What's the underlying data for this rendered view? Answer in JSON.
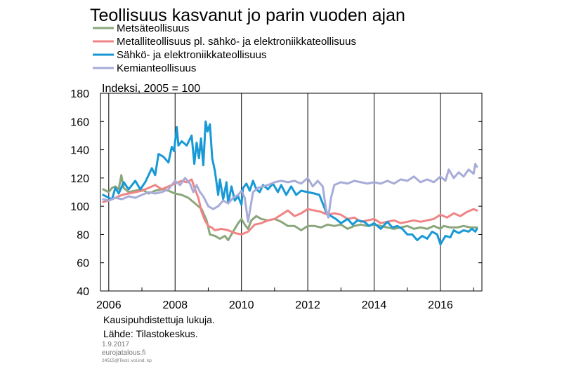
{
  "chart_data": {
    "type": "line",
    "title": "Teollisuus kasvanut jo parin vuoden ajan",
    "unit_label": "Indeksi, 2005 = 100",
    "ylim": [
      40,
      180
    ],
    "yticks": [
      "40",
      "60",
      "80",
      "100",
      "120",
      "140",
      "160",
      "180"
    ],
    "xlim": [
      2005.75,
      2017.25
    ],
    "xticks": [
      "2006",
      "2008",
      "2010",
      "2012",
      "2014",
      "2016"
    ],
    "grid": "vertical at even years",
    "legend_position": "top-left",
    "notes": [
      "Kausipuhdistettuja  lukuja.",
      "Lähde:  Tilastokeskus."
    ],
    "footer": {
      "date": "1.9.2017",
      "site": "eurojatalous.fi",
      "code": "24515@Teoll. vol.ind. kp"
    },
    "series": [
      {
        "name": "Metsäteollisuus",
        "color": "#8aa77c",
        "points": [
          [
            2005.83,
            112
          ],
          [
            2006.0,
            110
          ],
          [
            2006.1,
            113
          ],
          [
            2006.2,
            114
          ],
          [
            2006.3,
            112
          ],
          [
            2006.38,
            122
          ],
          [
            2006.45,
            113
          ],
          [
            2006.6,
            110
          ],
          [
            2006.8,
            111
          ],
          [
            2007.0,
            112
          ],
          [
            2007.2,
            109
          ],
          [
            2007.4,
            111
          ],
          [
            2007.6,
            112
          ],
          [
            2007.8,
            111
          ],
          [
            2008.0,
            109
          ],
          [
            2008.2,
            108
          ],
          [
            2008.4,
            106
          ],
          [
            2008.6,
            102
          ],
          [
            2008.8,
            98
          ],
          [
            2008.95,
            90
          ],
          [
            2009.05,
            80
          ],
          [
            2009.2,
            79
          ],
          [
            2009.35,
            77
          ],
          [
            2009.5,
            79
          ],
          [
            2009.6,
            76
          ],
          [
            2009.7,
            80
          ],
          [
            2009.8,
            84
          ],
          [
            2009.9,
            88
          ],
          [
            2010.0,
            91
          ],
          [
            2010.1,
            87
          ],
          [
            2010.2,
            84
          ],
          [
            2010.3,
            90
          ],
          [
            2010.45,
            93
          ],
          [
            2010.6,
            91
          ],
          [
            2010.8,
            90
          ],
          [
            2011.0,
            91
          ],
          [
            2011.2,
            89
          ],
          [
            2011.4,
            86
          ],
          [
            2011.6,
            86
          ],
          [
            2011.8,
            83
          ],
          [
            2012.0,
            86
          ],
          [
            2012.2,
            86
          ],
          [
            2012.4,
            85
          ],
          [
            2012.6,
            87
          ],
          [
            2012.8,
            86
          ],
          [
            2013.0,
            87
          ],
          [
            2013.2,
            84
          ],
          [
            2013.4,
            86
          ],
          [
            2013.6,
            87
          ],
          [
            2013.8,
            86
          ],
          [
            2014.0,
            87
          ],
          [
            2014.2,
            86
          ],
          [
            2014.4,
            85
          ],
          [
            2014.6,
            84
          ],
          [
            2014.8,
            85
          ],
          [
            2015.0,
            86
          ],
          [
            2015.2,
            84
          ],
          [
            2015.4,
            85
          ],
          [
            2015.6,
            84
          ],
          [
            2015.8,
            86
          ],
          [
            2016.0,
            84
          ],
          [
            2016.1,
            86
          ],
          [
            2016.3,
            85
          ],
          [
            2016.5,
            85
          ],
          [
            2016.7,
            86
          ],
          [
            2016.9,
            85
          ],
          [
            2017.1,
            85
          ]
        ]
      },
      {
        "name": "Metalliteollisuus pl. sähkö- ja elektroniikkateollisuus",
        "color": "#f08484",
        "points": [
          [
            2005.83,
            103
          ],
          [
            2006.0,
            104
          ],
          [
            2006.2,
            106
          ],
          [
            2006.4,
            108
          ],
          [
            2006.6,
            109
          ],
          [
            2006.8,
            110
          ],
          [
            2007.0,
            111
          ],
          [
            2007.2,
            113
          ],
          [
            2007.4,
            115
          ],
          [
            2007.6,
            112
          ],
          [
            2007.8,
            114
          ],
          [
            2008.0,
            116
          ],
          [
            2008.2,
            118
          ],
          [
            2008.35,
            117
          ],
          [
            2008.5,
            119
          ],
          [
            2008.6,
            112
          ],
          [
            2008.7,
            106
          ],
          [
            2008.8,
            96
          ],
          [
            2008.9,
            90
          ],
          [
            2009.0,
            86
          ],
          [
            2009.1,
            85
          ],
          [
            2009.2,
            83
          ],
          [
            2009.4,
            84
          ],
          [
            2009.6,
            83
          ],
          [
            2009.8,
            81
          ],
          [
            2010.0,
            80
          ],
          [
            2010.2,
            82
          ],
          [
            2010.4,
            87
          ],
          [
            2010.6,
            88
          ],
          [
            2010.8,
            90
          ],
          [
            2011.0,
            91
          ],
          [
            2011.2,
            94
          ],
          [
            2011.4,
            97
          ],
          [
            2011.6,
            93
          ],
          [
            2011.8,
            95
          ],
          [
            2012.0,
            98
          ],
          [
            2012.2,
            97
          ],
          [
            2012.4,
            96
          ],
          [
            2012.6,
            94
          ],
          [
            2012.8,
            95
          ],
          [
            2013.0,
            94
          ],
          [
            2013.2,
            91
          ],
          [
            2013.4,
            92
          ],
          [
            2013.6,
            89
          ],
          [
            2013.8,
            90
          ],
          [
            2014.0,
            91
          ],
          [
            2014.2,
            88
          ],
          [
            2014.4,
            89
          ],
          [
            2014.6,
            90
          ],
          [
            2014.8,
            88
          ],
          [
            2015.0,
            89
          ],
          [
            2015.2,
            90
          ],
          [
            2015.4,
            89
          ],
          [
            2015.6,
            90
          ],
          [
            2015.8,
            91
          ],
          [
            2016.0,
            94
          ],
          [
            2016.2,
            92
          ],
          [
            2016.4,
            95
          ],
          [
            2016.6,
            93
          ],
          [
            2016.8,
            96
          ],
          [
            2017.0,
            98
          ],
          [
            2017.1,
            97
          ]
        ]
      },
      {
        "name": "Sähkö- ja elektroniikkateollisuus",
        "color": "#1899d6",
        "points": [
          [
            2005.83,
            108
          ],
          [
            2006.0,
            106
          ],
          [
            2006.1,
            105
          ],
          [
            2006.2,
            113
          ],
          [
            2006.3,
            109
          ],
          [
            2006.45,
            117
          ],
          [
            2006.6,
            112
          ],
          [
            2006.8,
            118
          ],
          [
            2006.95,
            112
          ],
          [
            2007.1,
            117
          ],
          [
            2007.3,
            127
          ],
          [
            2007.4,
            122
          ],
          [
            2007.5,
            137
          ],
          [
            2007.65,
            135
          ],
          [
            2007.8,
            131
          ],
          [
            2007.9,
            142
          ],
          [
            2007.97,
            139
          ],
          [
            2008.05,
            156
          ],
          [
            2008.1,
            143
          ],
          [
            2008.2,
            146
          ],
          [
            2008.35,
            143
          ],
          [
            2008.5,
            150
          ],
          [
            2008.58,
            130
          ],
          [
            2008.65,
            145
          ],
          [
            2008.72,
            134
          ],
          [
            2008.78,
            148
          ],
          [
            2008.85,
            129
          ],
          [
            2008.92,
            160
          ],
          [
            2008.98,
            153
          ],
          [
            2009.05,
            158
          ],
          [
            2009.12,
            134
          ],
          [
            2009.2,
            125
          ],
          [
            2009.3,
            108
          ],
          [
            2009.35,
            119
          ],
          [
            2009.45,
            105
          ],
          [
            2009.55,
            117
          ],
          [
            2009.6,
            102
          ],
          [
            2009.7,
            114
          ],
          [
            2009.8,
            104
          ],
          [
            2009.9,
            107
          ],
          [
            2010.0,
            101
          ],
          [
            2010.05,
            113
          ],
          [
            2010.15,
            116
          ],
          [
            2010.25,
            111
          ],
          [
            2010.35,
            118
          ],
          [
            2010.45,
            112
          ],
          [
            2010.55,
            110
          ],
          [
            2010.65,
            115
          ],
          [
            2010.8,
            112
          ],
          [
            2010.95,
            116
          ],
          [
            2011.1,
            110
          ],
          [
            2011.2,
            115
          ],
          [
            2011.35,
            108
          ],
          [
            2011.5,
            114
          ],
          [
            2011.65,
            108
          ],
          [
            2011.8,
            111
          ],
          [
            2012.0,
            110
          ],
          [
            2012.2,
            109
          ],
          [
            2012.35,
            108
          ],
          [
            2012.45,
            102
          ],
          [
            2012.55,
            96
          ],
          [
            2012.7,
            93
          ],
          [
            2012.85,
            91
          ],
          [
            2013.0,
            88
          ],
          [
            2013.2,
            91
          ],
          [
            2013.35,
            87
          ],
          [
            2013.5,
            90
          ],
          [
            2013.7,
            89
          ],
          [
            2013.85,
            86
          ],
          [
            2014.0,
            88
          ],
          [
            2014.2,
            84
          ],
          [
            2014.4,
            89
          ],
          [
            2014.55,
            85
          ],
          [
            2014.7,
            86
          ],
          [
            2014.85,
            84
          ],
          [
            2015.0,
            80
          ],
          [
            2015.15,
            80
          ],
          [
            2015.3,
            76
          ],
          [
            2015.45,
            79
          ],
          [
            2015.6,
            77
          ],
          [
            2015.75,
            82
          ],
          [
            2015.9,
            80
          ],
          [
            2016.0,
            73
          ],
          [
            2016.15,
            79
          ],
          [
            2016.3,
            78
          ],
          [
            2016.4,
            83
          ],
          [
            2016.55,
            81
          ],
          [
            2016.7,
            83
          ],
          [
            2016.85,
            82
          ],
          [
            2016.95,
            84
          ],
          [
            2017.05,
            82
          ],
          [
            2017.1,
            84
          ]
        ]
      },
      {
        "name": "Kemianteollisuus",
        "color": "#a7acd8",
        "points": [
          [
            2005.83,
            105
          ],
          [
            2006.0,
            104
          ],
          [
            2006.2,
            106
          ],
          [
            2006.4,
            105
          ],
          [
            2006.6,
            107
          ],
          [
            2006.8,
            106
          ],
          [
            2007.0,
            108
          ],
          [
            2007.2,
            110
          ],
          [
            2007.4,
            109
          ],
          [
            2007.6,
            110
          ],
          [
            2007.8,
            112
          ],
          [
            2008.0,
            118
          ],
          [
            2008.15,
            115
          ],
          [
            2008.3,
            120
          ],
          [
            2008.45,
            116
          ],
          [
            2008.55,
            110
          ],
          [
            2008.65,
            115
          ],
          [
            2008.75,
            110
          ],
          [
            2008.85,
            107
          ],
          [
            2009.0,
            100
          ],
          [
            2009.15,
            98
          ],
          [
            2009.3,
            100
          ],
          [
            2009.45,
            104
          ],
          [
            2009.6,
            102
          ],
          [
            2009.75,
            106
          ],
          [
            2009.9,
            108
          ],
          [
            2010.0,
            111
          ],
          [
            2010.1,
            106
          ],
          [
            2010.2,
            89
          ],
          [
            2010.35,
            110
          ],
          [
            2010.5,
            113
          ],
          [
            2010.65,
            114
          ],
          [
            2010.8,
            115
          ],
          [
            2011.0,
            117
          ],
          [
            2011.2,
            118
          ],
          [
            2011.4,
            117
          ],
          [
            2011.6,
            118
          ],
          [
            2011.8,
            116
          ],
          [
            2012.0,
            120
          ],
          [
            2012.15,
            114
          ],
          [
            2012.3,
            118
          ],
          [
            2012.45,
            114
          ],
          [
            2012.55,
            98
          ],
          [
            2012.62,
            92
          ],
          [
            2012.7,
            106
          ],
          [
            2012.8,
            115
          ],
          [
            2013.0,
            117
          ],
          [
            2013.2,
            116
          ],
          [
            2013.4,
            118
          ],
          [
            2013.6,
            117
          ],
          [
            2013.8,
            116
          ],
          [
            2014.0,
            117
          ],
          [
            2014.2,
            116
          ],
          [
            2014.4,
            118
          ],
          [
            2014.6,
            116
          ],
          [
            2014.8,
            119
          ],
          [
            2015.0,
            118
          ],
          [
            2015.2,
            121
          ],
          [
            2015.4,
            117
          ],
          [
            2015.6,
            119
          ],
          [
            2015.8,
            117
          ],
          [
            2016.0,
            121
          ],
          [
            2016.15,
            118
          ],
          [
            2016.25,
            126
          ],
          [
            2016.4,
            120
          ],
          [
            2016.55,
            124
          ],
          [
            2016.7,
            121
          ],
          [
            2016.85,
            126
          ],
          [
            2017.0,
            123
          ],
          [
            2017.05,
            130
          ],
          [
            2017.1,
            128
          ]
        ]
      }
    ]
  }
}
